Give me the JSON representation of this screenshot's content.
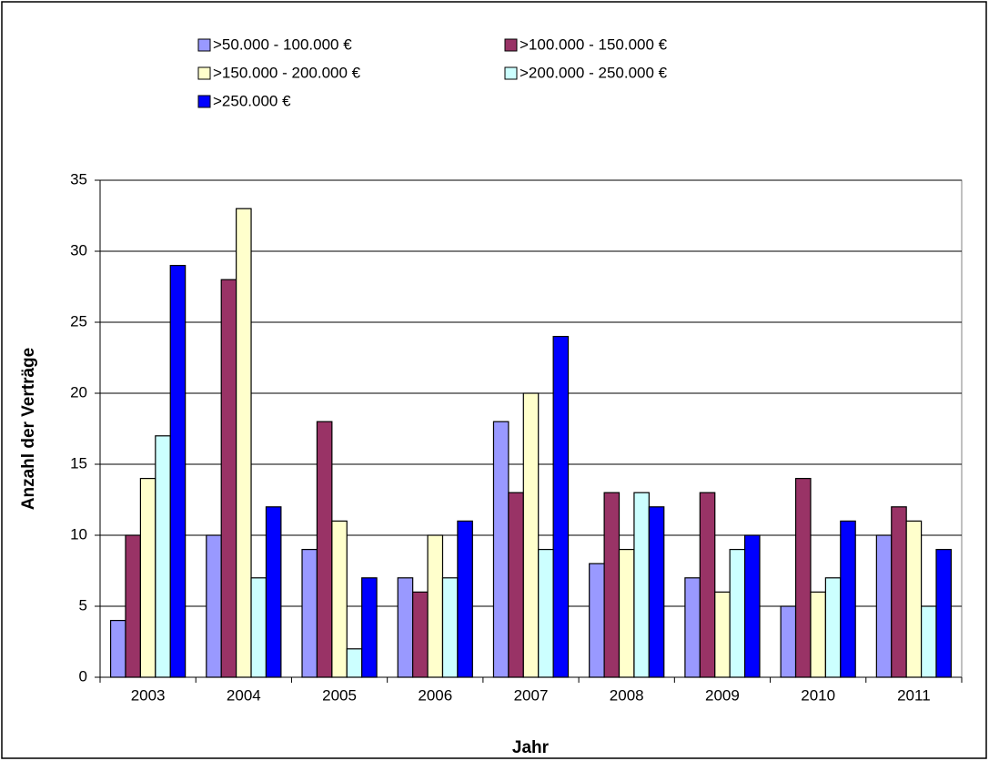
{
  "chart_data": {
    "type": "bar",
    "x_label": "Jahr",
    "y_label": "Anzahl der Verträge",
    "categories": [
      "2003",
      "2004",
      "2005",
      "2006",
      "2007",
      "2008",
      "2009",
      "2010",
      "2011"
    ],
    "series": [
      {
        "name": ">50.000 - 100.000 €",
        "color": "#9999ff",
        "values": [
          4,
          10,
          9,
          7,
          18,
          8,
          7,
          5,
          10
        ]
      },
      {
        "name": ">100.000 - 150.000 €",
        "color": "#993366",
        "values": [
          10,
          28,
          18,
          6,
          13,
          13,
          13,
          14,
          12
        ]
      },
      {
        "name": ">150.000 - 200.000 €",
        "color": "#ffffcc",
        "values": [
          14,
          33,
          11,
          10,
          20,
          9,
          6,
          6,
          11
        ]
      },
      {
        "name": ">200.000 - 250.000 €",
        "color": "#ccffff",
        "values": [
          17,
          7,
          2,
          7,
          9,
          13,
          9,
          7,
          5
        ]
      },
      {
        "name": ">250.000 €",
        "color": "#0000ff",
        "values": [
          29,
          12,
          7,
          11,
          24,
          12,
          10,
          11,
          9
        ]
      }
    ],
    "ylim": [
      0,
      35
    ],
    "yticks": [
      0,
      5,
      10,
      15,
      20,
      25,
      30,
      35
    ],
    "grid": true,
    "legend": "top"
  }
}
